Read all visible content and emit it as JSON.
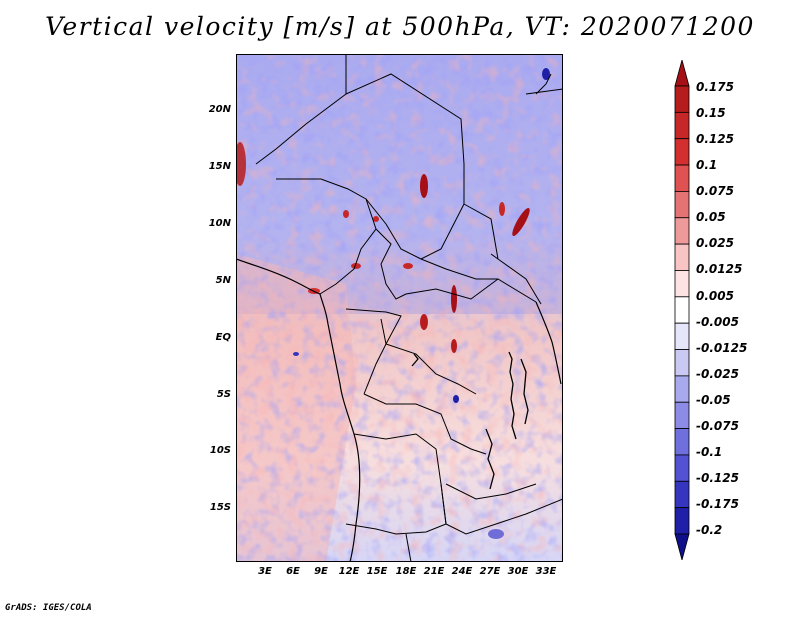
{
  "title": "Vertical velocity [m/s] at 500hPa, VT: 2020071200",
  "credit": "GrADS: IGES/COLA",
  "map": {
    "lat_labels": [
      "20N",
      "15N",
      "10N",
      "5N",
      "EQ",
      "5S",
      "10S",
      "15S"
    ],
    "lon_labels": [
      "3E",
      "6E",
      "9E",
      "12E",
      "15E",
      "18E",
      "21E",
      "24E",
      "27E",
      "30E",
      "33E"
    ]
  },
  "colorbar": {
    "labels": [
      "0.175",
      "0.15",
      "0.125",
      "0.1",
      "0.075",
      "0.05",
      "0.025",
      "0.0125",
      "0.005",
      "-0.005",
      "-0.0125",
      "-0.025",
      "-0.05",
      "-0.075",
      "-0.1",
      "-0.125",
      "-0.175",
      "-0.2"
    ],
    "colors": [
      "#a50f15",
      "#b71c1c",
      "#c62828",
      "#d32f2f",
      "#e05252",
      "#e57373",
      "#ef9a9a",
      "#f8c4c4",
      "#fde3e3",
      "#ffffff",
      "#e6e6fb",
      "#c9c9f4",
      "#a9a9ee",
      "#8c8ce6",
      "#6f6fde",
      "#5252d2",
      "#3535c0",
      "#1f1fa8",
      "#0f0f8a"
    ]
  }
}
